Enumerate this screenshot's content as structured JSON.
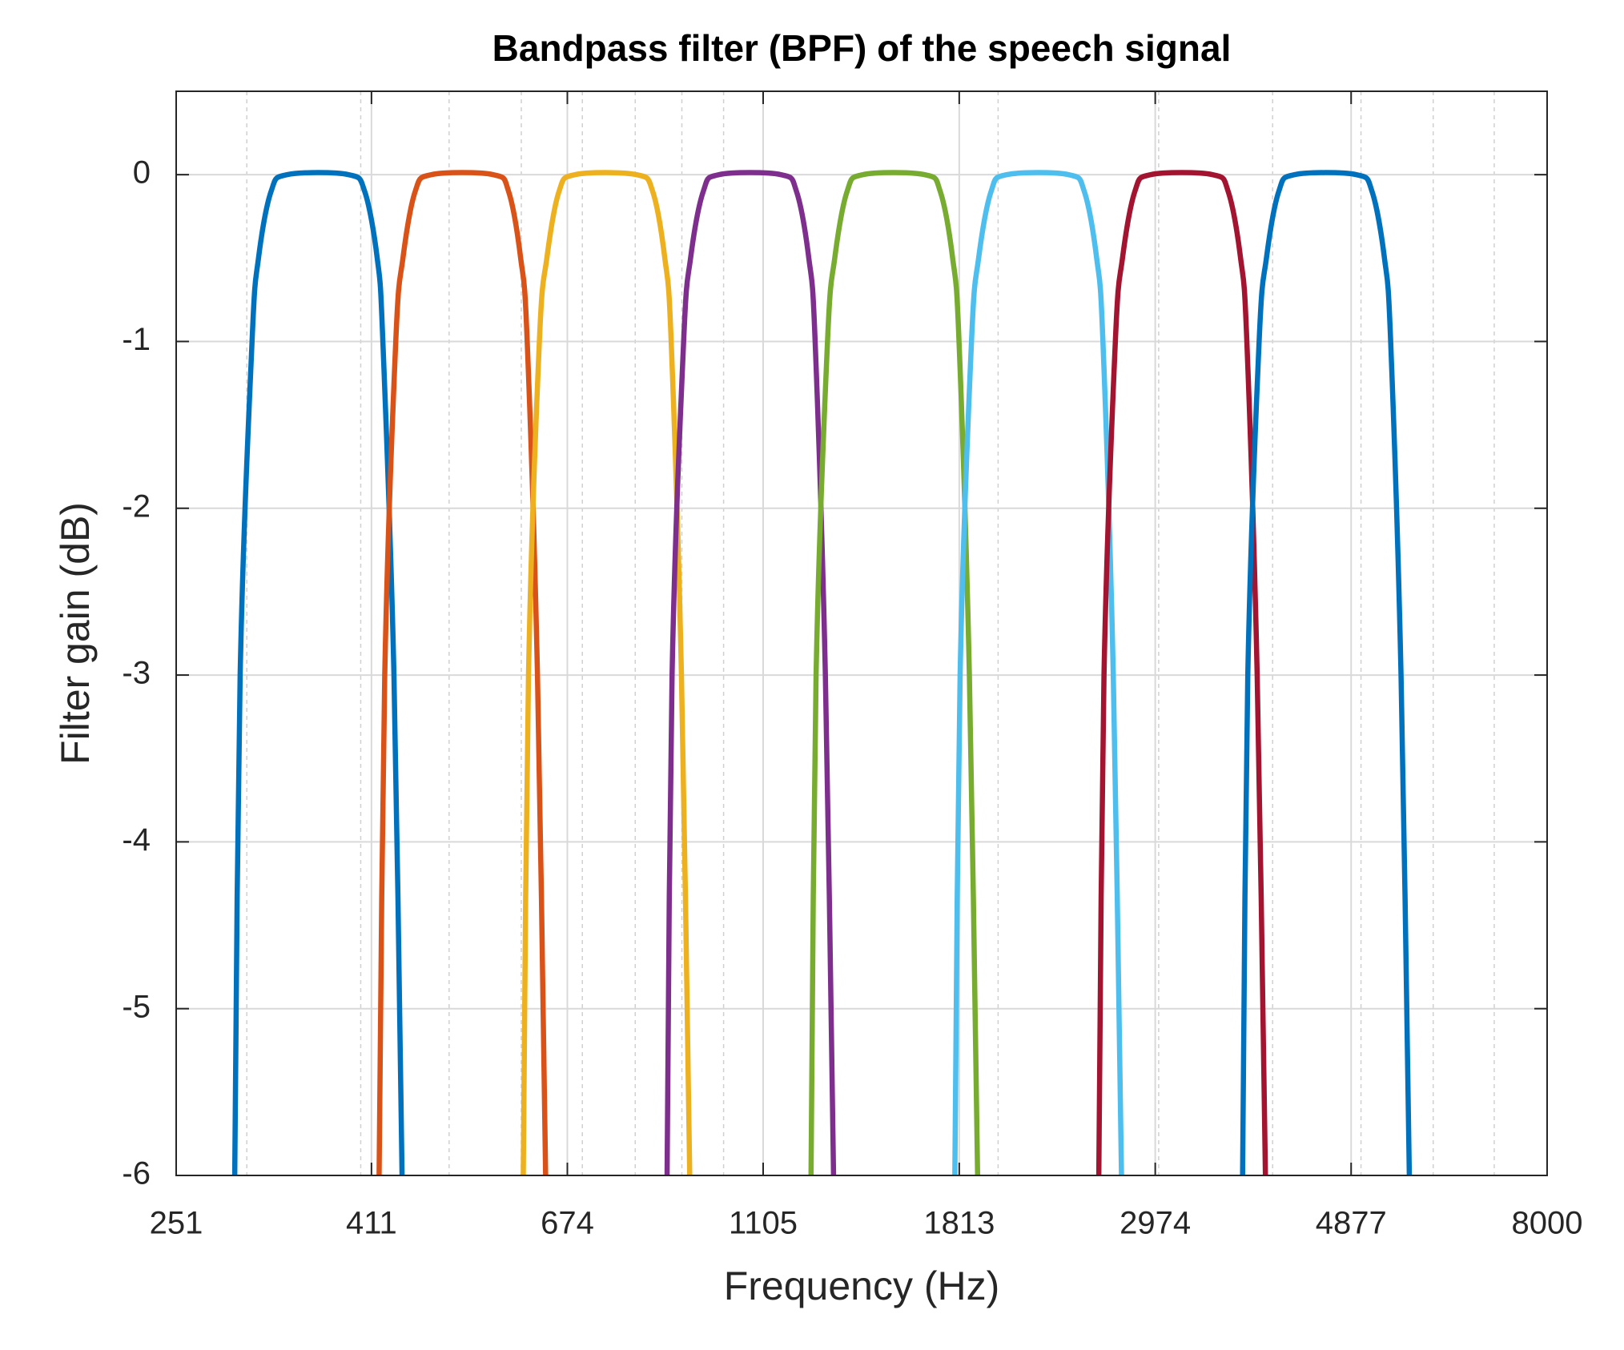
{
  "chart_data": {
    "type": "line",
    "title": "Bandpass filter (BPF) of the speech signal",
    "x_label": "Frequency (Hz)",
    "y_label": "Filter gain (dB)",
    "x_scale": "log",
    "xlim": [
      251,
      8000
    ],
    "ylim": [
      -6,
      0.5
    ],
    "xticks": [
      251,
      411,
      674,
      1105,
      1813,
      2974,
      4877,
      8000
    ],
    "yticks": [
      0,
      -1,
      -2,
      -3,
      -4,
      -5,
      -6
    ],
    "grid": true,
    "minor_grid": true,
    "series": [
      {
        "color": "#0072BD",
        "x": [
          291,
          295,
          304,
          309,
          319,
          332,
          388,
          404,
          417,
          423,
          435,
          444
        ],
        "values": [
          -6,
          -3,
          -1,
          -0.5,
          -0.1,
          0,
          0,
          -0.1,
          -0.5,
          -1,
          -3,
          -6
        ]
      },
      {
        "color": "#D95319",
        "x": [
          419,
          425,
          437,
          445,
          459,
          478,
          559,
          581,
          599,
          609,
          625,
          638
        ],
        "values": [
          -6,
          -3,
          -1,
          -0.5,
          -0.1,
          0,
          0,
          -0.1,
          -0.5,
          -1,
          -3,
          -6
        ]
      },
      {
        "color": "#EDB120",
        "x": [
          603,
          611,
          628,
          640,
          660,
          687,
          803,
          836,
          862,
          876,
          899,
          918
        ],
        "values": [
          -6,
          -3,
          -1,
          -0.5,
          -0.1,
          0,
          0,
          -0.1,
          -0.5,
          -1,
          -3,
          -6
        ]
      },
      {
        "color": "#7E2F8E",
        "x": [
          867,
          878,
          904,
          920,
          950,
          988,
          1156,
          1202,
          1240,
          1260,
          1293,
          1320
        ],
        "values": [
          -6,
          -3,
          -1,
          -0.5,
          -0.1,
          0,
          0,
          -0.1,
          -0.5,
          -1,
          -3,
          -6
        ]
      },
      {
        "color": "#77AC30",
        "x": [
          1247,
          1263,
          1300,
          1324,
          1366,
          1421,
          1662,
          1728,
          1783,
          1812,
          1860,
          1899
        ],
        "values": [
          -6,
          -3,
          -1,
          -0.5,
          -0.1,
          0,
          0,
          -0.1,
          -0.5,
          -1,
          -3,
          -6
        ]
      },
      {
        "color": "#4DBEEE",
        "x": [
          1793,
          1817,
          1870,
          1904,
          1965,
          2043,
          2390,
          2486,
          2565,
          2606,
          2675,
          2731
        ],
        "values": [
          -6,
          -3,
          -1,
          -0.5,
          -0.1,
          0,
          0,
          -0.1,
          -0.5,
          -1,
          -3,
          -6
        ]
      },
      {
        "color": "#A2142F",
        "x": [
          2579,
          2613,
          2689,
          2738,
          2825,
          2939,
          3438,
          3575,
          3689,
          3748,
          3847,
          3928
        ],
        "values": [
          -6,
          -3,
          -1,
          -0.5,
          -0.1,
          0,
          0,
          -0.1,
          -0.5,
          -1,
          -3,
          -6
        ]
      },
      {
        "color": "#0072BD",
        "x": [
          3708,
          3757,
          3866,
          3938,
          4063,
          4226,
          4943,
          5141,
          5305,
          5389,
          5532,
          5649
        ],
        "values": [
          -6,
          -3,
          -1,
          -0.5,
          -0.1,
          0,
          0,
          -0.1,
          -0.5,
          -1,
          -3,
          -6
        ]
      }
    ]
  }
}
